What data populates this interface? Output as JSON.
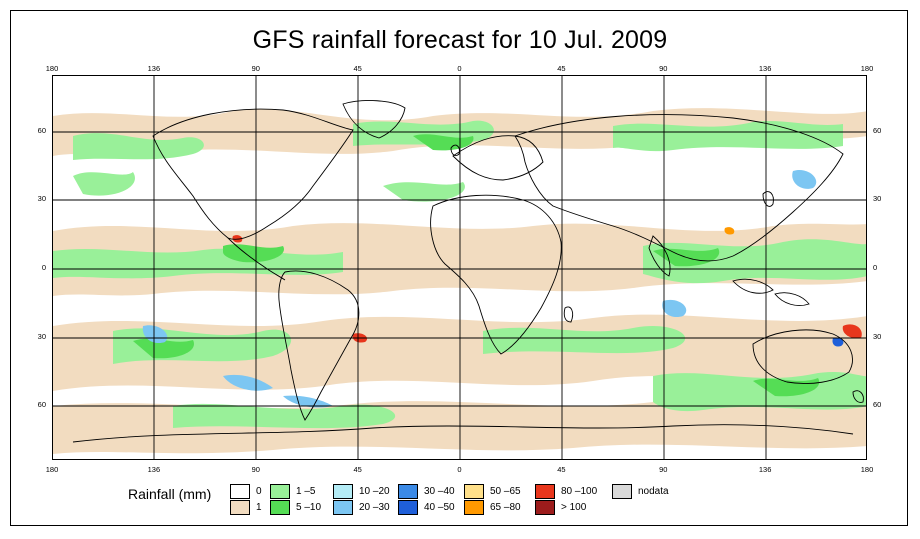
{
  "title": "GFS rainfall forecast for 10 Jul. 2009",
  "map": {
    "top_ticks": [
      "180",
      "136",
      "90",
      "45",
      "0",
      "45",
      "90",
      "136",
      "180"
    ],
    "bottom_ticks": [
      "180",
      "136",
      "90",
      "45",
      "0",
      "45",
      "90",
      "136",
      "180"
    ],
    "left_ticks": [
      "60",
      "30",
      "0",
      "30",
      "60"
    ],
    "right_ticks": [
      "60",
      "30",
      "0",
      "30",
      "60"
    ],
    "colors": {
      "trace": "#f2dcc0",
      "light_green": "#99f099",
      "green": "#55dd55",
      "light_blue": "#b4ecf6",
      "blue": "#7cc6f2",
      "mid_blue": "#3b8ae6",
      "dark_blue": "#1f5fd9",
      "red": "#e8361c",
      "coast": "#000000"
    }
  },
  "legend": {
    "title": "Rainfall (mm)",
    "items": [
      {
        "label": "0",
        "color": "#ffffff"
      },
      {
        "label": "1",
        "color": "#f2dcc0"
      },
      {
        "label": "1 –5",
        "color": "#99f099"
      },
      {
        "label": "5 –10",
        "color": "#55dd55"
      },
      {
        "label": "10 –20",
        "color": "#b4ecf6"
      },
      {
        "label": "20 –30",
        "color": "#7cc6f2"
      },
      {
        "label": "30 –40",
        "color": "#3b8ae6"
      },
      {
        "label": "40 –50",
        "color": "#1f5fd9"
      },
      {
        "label": "50 –65",
        "color": "#ffe08a"
      },
      {
        "label": "65 –80",
        "color": "#ff9900"
      },
      {
        "label": "80 –100",
        "color": "#e8361c"
      },
      {
        "label": "> 100",
        "color": "#9c1c1c"
      },
      {
        "label": "nodata",
        "color": "#d9d9d9"
      }
    ]
  }
}
